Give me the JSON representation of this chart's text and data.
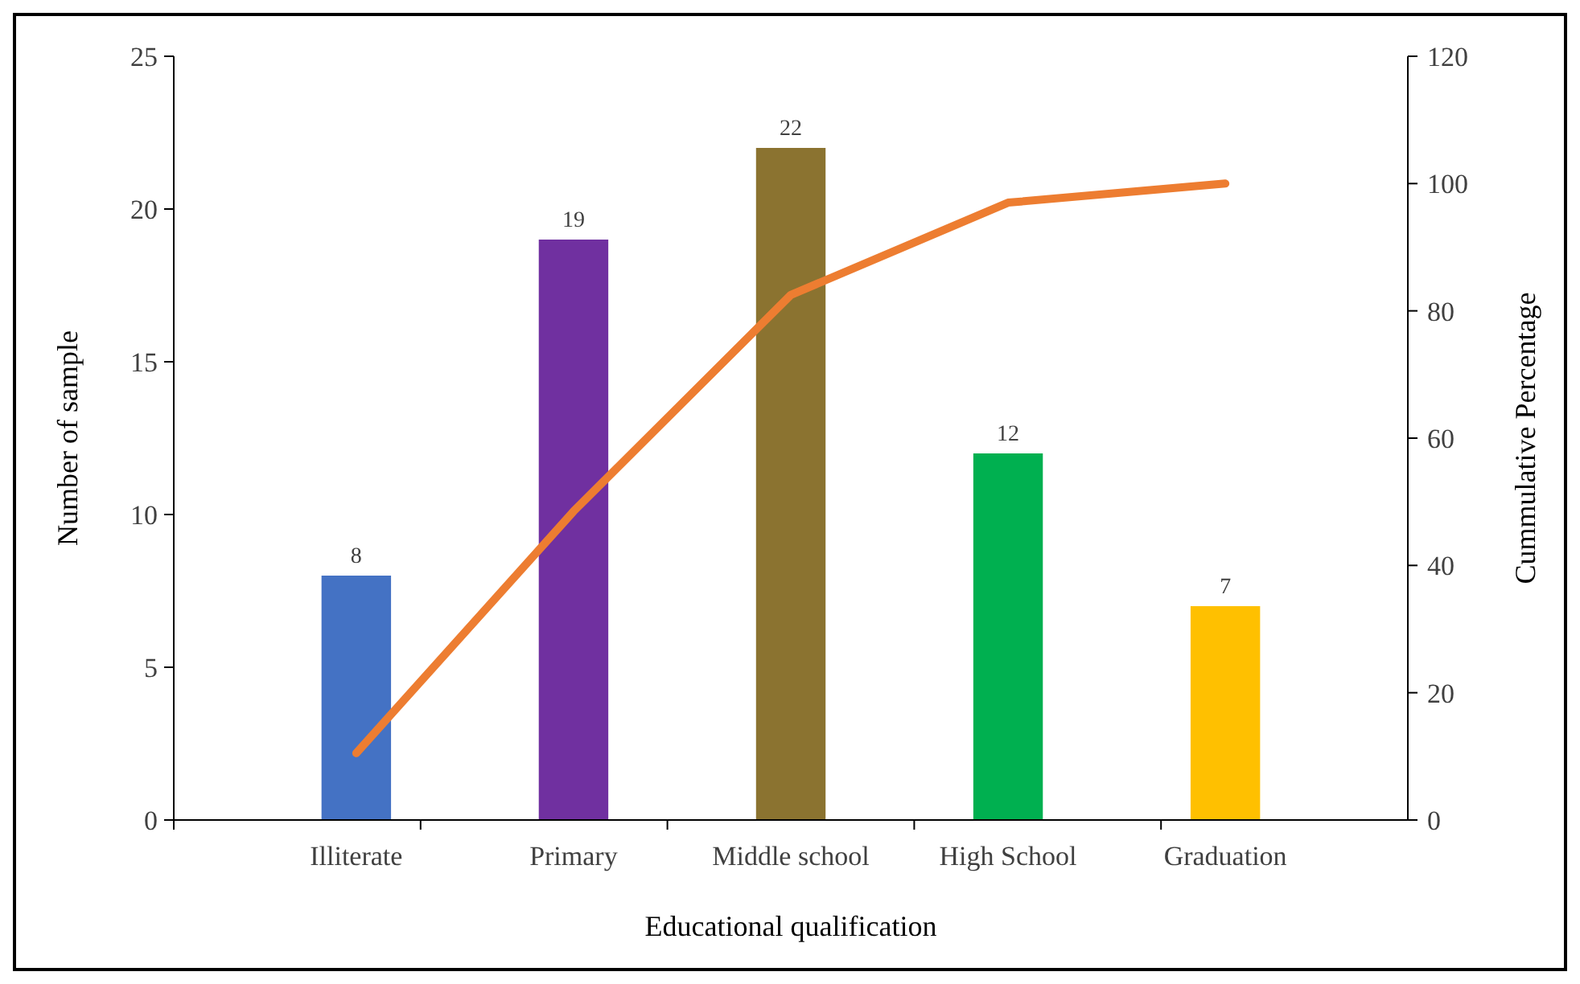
{
  "chart_data": {
    "type": "bar",
    "xlabel": "Educational qualification",
    "ylabel": "Number of sample",
    "y2label": "Cummulative Percentage",
    "categories": [
      "Illiterate",
      "Primary",
      "Middle school",
      "High School",
      "Graduation"
    ],
    "series": [
      {
        "colors": [
          "#4472c4",
          "#7030a0",
          "#8b7330",
          "#00b050",
          "#ffc000"
        ],
        "values": [
          8,
          19,
          22,
          12,
          7
        ],
        "data_labels": true
      },
      {
        "type": "line",
        "axis": "y2",
        "color": "#ed7d31",
        "values": [
          10.5,
          48.5,
          82.5,
          97,
          100
        ],
        "marker": "none",
        "line_style": "solid"
      }
    ],
    "ylim": [
      0,
      25
    ],
    "yticks": [
      0,
      5,
      10,
      15,
      20,
      25
    ],
    "y2lim": [
      0,
      120
    ],
    "y2ticks": [
      0,
      20,
      40,
      60,
      80,
      100,
      120
    ],
    "grid": false
  }
}
